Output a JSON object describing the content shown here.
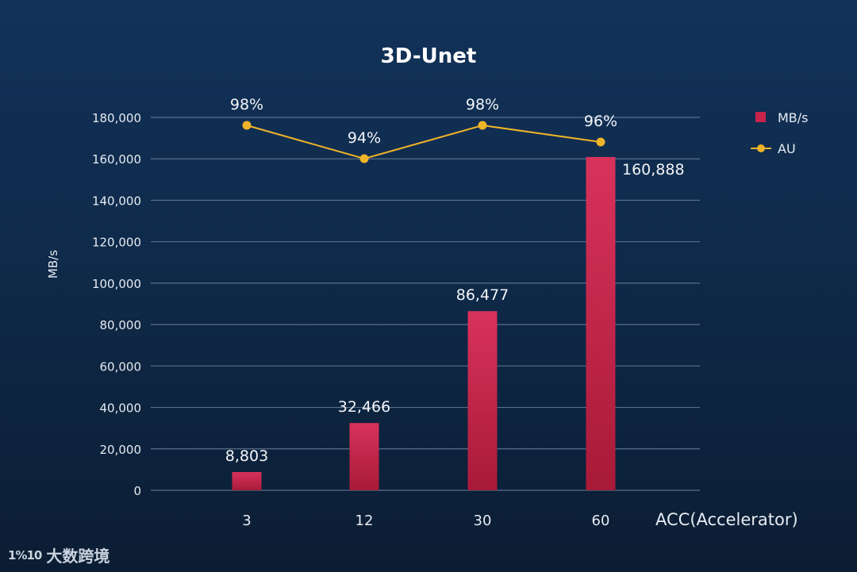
{
  "chart_data": {
    "type": "bar",
    "title": "3D-Unet",
    "categories": [
      "3",
      "12",
      "30",
      "60"
    ],
    "xlabel": "ACC(Accelerator)",
    "ylabel": "MB/s",
    "ylim": [
      0,
      180000
    ],
    "yticks": [
      0,
      20000,
      40000,
      60000,
      80000,
      100000,
      120000,
      140000,
      160000,
      180000
    ],
    "ytick_labels": [
      "0",
      "20,000",
      "40,000",
      "60,000",
      "80,000",
      "100,000",
      "120,000",
      "140,000",
      "160,000",
      "180,000"
    ],
    "grid": true,
    "legend_position": "top-right",
    "series": [
      {
        "name": "MB/s",
        "type": "bar",
        "axis": "left",
        "color": "#c8234a",
        "values": [
          8803,
          32466,
          86477,
          160888
        ],
        "labels": [
          "8,803",
          "32,466",
          "86,477",
          "160,888"
        ]
      },
      {
        "name": "AU",
        "type": "line",
        "axis": "right-hidden",
        "color": "#f0b429",
        "values": [
          98,
          94,
          98,
          96
        ],
        "labels": [
          "98%",
          "94%",
          "98%",
          "96%"
        ]
      }
    ]
  },
  "watermark": {
    "logo": "1%10",
    "text": "大数跨境"
  }
}
